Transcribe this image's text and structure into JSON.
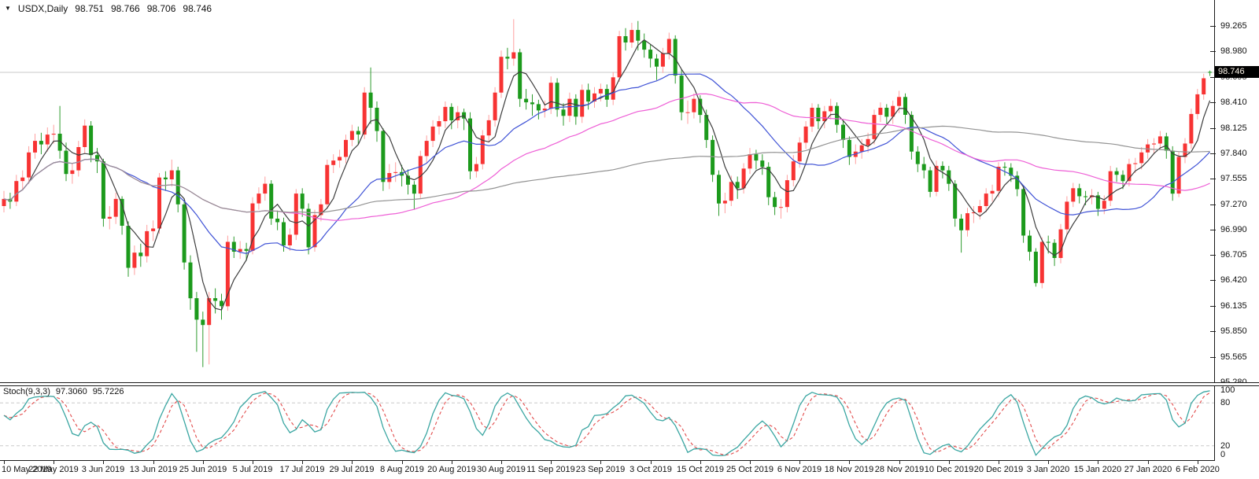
{
  "header": {
    "symbol_period": "USDX,Daily",
    "open": "98.751",
    "high": "98.766",
    "low": "98.706",
    "close": "98.746"
  },
  "price_tag": {
    "value": "98.746"
  },
  "indicator": {
    "name": "Stoch(9,3,3)",
    "k_value": "97.3060",
    "d_value": "95.7226"
  },
  "colors": {
    "background": "#ffffff",
    "axis": "#1a1a1a",
    "text": "#111111",
    "up_body": "#f73333",
    "up_wick": "#ff9f9f",
    "down_body": "#1c9a1c",
    "down_wick": "#2e9b2e",
    "current_price_line": "#c8c8c8",
    "price_tag_bg": "#000000",
    "price_tag_text": "#fdf6ea",
    "stoch_level_line": "#c9c9c9"
  },
  "chart_data": {
    "type": "candlestick",
    "symbol": "USDX",
    "timeframe": "Daily",
    "last_bar": {
      "open": 98.751,
      "high": 98.766,
      "low": 98.706,
      "close": 98.746
    },
    "current_price": 98.746,
    "y_axis": {
      "plot_max": 99.555,
      "plot_min": 95.28,
      "labels": [
        "99.265",
        "98.980",
        "98.695",
        "98.410",
        "98.125",
        "97.840",
        "97.555",
        "97.270",
        "96.990",
        "96.705",
        "96.420",
        "96.135",
        "95.850",
        "95.565",
        "95.280"
      ]
    },
    "x_axis": {
      "labels": [
        {
          "text": "10 May 2019",
          "bar": 0
        },
        {
          "text": "22 May 2019",
          "bar": 8
        },
        {
          "text": "3 Jun 2019",
          "bar": 16
        },
        {
          "text": "13 Jun 2019",
          "bar": 24
        },
        {
          "text": "25 Jun 2019",
          "bar": 32
        },
        {
          "text": "5 Jul 2019",
          "bar": 40
        },
        {
          "text": "17 Jul 2019",
          "bar": 48
        },
        {
          "text": "29 Jul 2019",
          "bar": 56
        },
        {
          "text": "8 Aug 2019",
          "bar": 64
        },
        {
          "text": "20 Aug 2019",
          "bar": 72
        },
        {
          "text": "30 Aug 2019",
          "bar": 80
        },
        {
          "text": "11 Sep 2019",
          "bar": 88
        },
        {
          "text": "23 Sep 2019",
          "bar": 96
        },
        {
          "text": "3 Oct 2019",
          "bar": 104
        },
        {
          "text": "15 Oct 2019",
          "bar": 112
        },
        {
          "text": "25 Oct 2019",
          "bar": 120
        },
        {
          "text": "6 Nov 2019",
          "bar": 128
        },
        {
          "text": "18 Nov 2019",
          "bar": 136
        },
        {
          "text": "28 Nov 2019",
          "bar": 144
        },
        {
          "text": "10 Dec 2019",
          "bar": 152
        },
        {
          "text": "20 Dec 2019",
          "bar": 160
        },
        {
          "text": "3 Jan 2020",
          "bar": 168
        },
        {
          "text": "15 Jan 2020",
          "bar": 176
        },
        {
          "text": "27 Jan 2020",
          "bar": 184
        },
        {
          "text": "6 Feb 2020",
          "bar": 192
        }
      ]
    },
    "candles": [
      [
        97.25,
        97.42,
        97.18,
        97.33
      ],
      [
        97.33,
        97.4,
        97.22,
        97.3
      ],
      [
        97.3,
        97.6,
        97.25,
        97.53
      ],
      [
        97.53,
        97.65,
        97.44,
        97.57
      ],
      [
        97.57,
        97.92,
        97.5,
        97.85
      ],
      [
        97.85,
        98.06,
        97.78,
        97.98
      ],
      [
        97.98,
        98.07,
        97.83,
        97.94
      ],
      [
        97.94,
        98.13,
        97.86,
        98.05
      ],
      [
        98.05,
        98.16,
        97.95,
        98.06
      ],
      [
        98.06,
        98.37,
        97.78,
        97.87
      ],
      [
        97.87,
        97.96,
        97.53,
        97.61
      ],
      [
        97.61,
        97.73,
        97.5,
        97.65
      ],
      [
        97.65,
        97.98,
        97.58,
        97.91
      ],
      [
        97.91,
        98.22,
        97.84,
        98.15
      ],
      [
        98.15,
        98.2,
        97.74,
        97.82
      ],
      [
        97.82,
        97.9,
        97.62,
        97.75
      ],
      [
        97.75,
        97.78,
        97.02,
        97.11
      ],
      [
        97.11,
        97.25,
        96.99,
        97.13
      ],
      [
        97.13,
        97.4,
        97.05,
        97.33
      ],
      [
        97.33,
        97.36,
        96.93,
        97.03
      ],
      [
        97.03,
        97.08,
        96.46,
        96.56
      ],
      [
        96.56,
        96.81,
        96.48,
        96.73
      ],
      [
        96.73,
        96.83,
        96.57,
        96.69
      ],
      [
        96.69,
        97.04,
        96.62,
        96.97
      ],
      [
        96.97,
        97.09,
        96.86,
        97.0
      ],
      [
        97.0,
        97.62,
        96.94,
        97.57
      ],
      [
        97.57,
        97.64,
        97.42,
        97.55
      ],
      [
        97.55,
        97.77,
        97.47,
        97.65
      ],
      [
        97.65,
        97.69,
        97.18,
        97.27
      ],
      [
        97.27,
        97.32,
        96.54,
        96.62
      ],
      [
        96.62,
        96.7,
        96.09,
        96.22
      ],
      [
        96.22,
        96.29,
        95.62,
        95.98
      ],
      [
        95.98,
        96.07,
        95.45,
        95.92
      ],
      [
        95.92,
        96.29,
        95.48,
        96.22
      ],
      [
        96.22,
        96.33,
        96.05,
        96.19
      ],
      [
        96.19,
        96.27,
        95.98,
        96.13
      ],
      [
        96.13,
        96.92,
        96.08,
        96.85
      ],
      [
        96.85,
        96.91,
        96.67,
        96.74
      ],
      [
        96.74,
        96.86,
        96.66,
        96.77
      ],
      [
        96.77,
        96.84,
        96.64,
        96.75
      ],
      [
        96.75,
        97.35,
        96.71,
        97.28
      ],
      [
        97.28,
        97.46,
        97.21,
        97.39
      ],
      [
        97.39,
        97.58,
        97.31,
        97.5
      ],
      [
        97.5,
        97.54,
        97.04,
        97.11
      ],
      [
        97.11,
        97.2,
        96.98,
        97.07
      ],
      [
        97.07,
        97.12,
        96.74,
        96.81
      ],
      [
        96.81,
        97.0,
        96.75,
        96.93
      ],
      [
        96.93,
        97.44,
        96.87,
        97.39
      ],
      [
        97.39,
        97.45,
        97.13,
        97.22
      ],
      [
        97.22,
        97.28,
        96.71,
        96.79
      ],
      [
        96.79,
        97.21,
        96.74,
        97.15
      ],
      [
        97.15,
        97.33,
        97.08,
        97.27
      ],
      [
        97.27,
        97.77,
        97.22,
        97.71
      ],
      [
        97.71,
        97.83,
        97.62,
        97.76
      ],
      [
        97.76,
        97.88,
        97.68,
        97.8
      ],
      [
        97.8,
        98.05,
        97.73,
        97.99
      ],
      [
        97.99,
        98.16,
        97.92,
        98.09
      ],
      [
        98.09,
        98.14,
        97.94,
        98.05
      ],
      [
        98.05,
        98.58,
        98.0,
        98.52
      ],
      [
        98.52,
        98.8,
        98.17,
        98.35
      ],
      [
        98.35,
        98.42,
        97.97,
        98.09
      ],
      [
        98.09,
        98.12,
        97.42,
        97.52
      ],
      [
        97.52,
        97.72,
        97.44,
        97.62
      ],
      [
        97.62,
        97.74,
        97.52,
        97.63
      ],
      [
        97.63,
        97.71,
        97.47,
        97.59
      ],
      [
        97.59,
        97.66,
        97.38,
        97.49
      ],
      [
        97.49,
        97.53,
        97.21,
        97.39
      ],
      [
        97.39,
        97.87,
        97.33,
        97.81
      ],
      [
        97.81,
        98.04,
        97.73,
        97.98
      ],
      [
        97.98,
        98.21,
        97.91,
        98.14
      ],
      [
        98.14,
        98.26,
        98.05,
        98.2
      ],
      [
        98.2,
        98.42,
        98.12,
        98.36
      ],
      [
        98.36,
        98.4,
        98.11,
        98.21
      ],
      [
        98.21,
        98.37,
        98.12,
        98.3
      ],
      [
        98.3,
        98.34,
        98.1,
        98.23
      ],
      [
        98.23,
        98.3,
        97.55,
        97.64
      ],
      [
        97.64,
        97.8,
        97.57,
        97.72
      ],
      [
        97.72,
        98.1,
        97.66,
        98.04
      ],
      [
        98.04,
        98.27,
        97.96,
        98.21
      ],
      [
        98.21,
        98.58,
        98.14,
        98.52
      ],
      [
        98.52,
        98.99,
        98.46,
        98.92
      ],
      [
        98.92,
        99.02,
        98.78,
        98.9
      ],
      [
        98.9,
        99.34,
        98.82,
        98.97
      ],
      [
        98.97,
        99.01,
        98.36,
        98.45
      ],
      [
        98.45,
        98.56,
        98.33,
        98.41
      ],
      [
        98.41,
        98.5,
        98.26,
        98.39
      ],
      [
        98.39,
        98.44,
        98.22,
        98.32
      ],
      [
        98.32,
        98.43,
        98.24,
        98.34
      ],
      [
        98.34,
        98.7,
        98.28,
        98.63
      ],
      [
        98.63,
        98.68,
        98.25,
        98.33
      ],
      [
        98.33,
        98.4,
        98.15,
        98.26
      ],
      [
        98.26,
        98.52,
        98.19,
        98.45
      ],
      [
        98.45,
        98.5,
        98.16,
        98.25
      ],
      [
        98.25,
        98.61,
        98.18,
        98.55
      ],
      [
        98.55,
        98.62,
        98.33,
        98.42
      ],
      [
        98.42,
        98.58,
        98.35,
        98.51
      ],
      [
        98.51,
        98.62,
        98.42,
        98.56
      ],
      [
        98.56,
        98.61,
        98.36,
        98.44
      ],
      [
        98.44,
        98.75,
        98.38,
        98.69
      ],
      [
        98.69,
        99.21,
        98.64,
        99.15
      ],
      [
        99.15,
        99.24,
        98.99,
        99.08
      ],
      [
        99.08,
        99.3,
        99.02,
        99.22
      ],
      [
        99.22,
        99.32,
        98.99,
        99.1
      ],
      [
        99.1,
        99.18,
        98.91,
        99.0
      ],
      [
        99.0,
        99.06,
        98.8,
        98.9
      ],
      [
        98.9,
        98.95,
        98.66,
        98.81
      ],
      [
        98.81,
        99.02,
        98.74,
        98.96
      ],
      [
        98.96,
        99.19,
        98.89,
        99.12
      ],
      [
        99.12,
        99.16,
        98.62,
        98.71
      ],
      [
        98.71,
        98.78,
        98.21,
        98.3
      ],
      [
        98.3,
        98.43,
        98.17,
        98.3
      ],
      [
        98.3,
        98.51,
        98.23,
        98.45
      ],
      [
        98.45,
        98.49,
        98.18,
        98.27
      ],
      [
        98.27,
        98.33,
        97.9,
        97.99
      ],
      [
        97.99,
        98.04,
        97.52,
        97.6
      ],
      [
        97.6,
        97.65,
        97.14,
        97.28
      ],
      [
        97.28,
        97.4,
        97.17,
        97.31
      ],
      [
        97.31,
        97.59,
        97.25,
        97.52
      ],
      [
        97.52,
        97.58,
        97.33,
        97.45
      ],
      [
        97.45,
        97.73,
        97.39,
        97.67
      ],
      [
        97.67,
        97.9,
        97.61,
        97.83
      ],
      [
        97.83,
        97.88,
        97.66,
        97.76
      ],
      [
        97.76,
        97.83,
        97.6,
        97.69
      ],
      [
        97.69,
        97.74,
        97.26,
        97.35
      ],
      [
        97.35,
        97.41,
        97.15,
        97.24
      ],
      [
        97.24,
        97.33,
        97.11,
        97.24
      ],
      [
        97.24,
        97.6,
        97.18,
        97.54
      ],
      [
        97.54,
        97.82,
        97.47,
        97.75
      ],
      [
        97.75,
        98.02,
        97.68,
        97.96
      ],
      [
        97.96,
        98.2,
        97.89,
        98.14
      ],
      [
        98.14,
        98.4,
        98.08,
        98.35
      ],
      [
        98.35,
        98.39,
        98.11,
        98.2
      ],
      [
        98.2,
        98.37,
        98.12,
        98.31
      ],
      [
        98.31,
        98.45,
        98.22,
        98.37
      ],
      [
        98.37,
        98.41,
        98.07,
        98.16
      ],
      [
        98.16,
        98.21,
        97.9,
        97.99
      ],
      [
        97.99,
        98.03,
        97.71,
        97.8
      ],
      [
        97.8,
        97.94,
        97.72,
        97.86
      ],
      [
        97.86,
        98.0,
        97.78,
        97.93
      ],
      [
        97.93,
        98.07,
        97.85,
        98.0
      ],
      [
        98.0,
        98.33,
        97.94,
        98.27
      ],
      [
        98.27,
        98.41,
        98.19,
        98.35
      ],
      [
        98.35,
        98.39,
        98.16,
        98.25
      ],
      [
        98.25,
        98.43,
        98.17,
        98.37
      ],
      [
        98.37,
        98.54,
        98.29,
        98.47
      ],
      [
        98.47,
        98.51,
        98.17,
        98.27
      ],
      [
        98.27,
        98.31,
        97.77,
        97.86
      ],
      [
        97.86,
        97.92,
        97.63,
        97.72
      ],
      [
        97.72,
        97.8,
        97.56,
        97.65
      ],
      [
        97.65,
        97.69,
        97.35,
        97.41
      ],
      [
        97.41,
        97.76,
        97.36,
        97.7
      ],
      [
        97.7,
        97.75,
        97.56,
        97.65
      ],
      [
        97.65,
        97.7,
        97.42,
        97.5
      ],
      [
        97.5,
        97.54,
        97.02,
        97.11
      ],
      [
        97.11,
        97.16,
        96.73,
        96.98
      ],
      [
        96.98,
        97.23,
        96.91,
        97.17
      ],
      [
        97.17,
        97.25,
        97.06,
        97.18
      ],
      [
        97.18,
        97.32,
        97.1,
        97.25
      ],
      [
        97.25,
        97.45,
        97.18,
        97.39
      ],
      [
        97.39,
        97.49,
        97.3,
        97.42
      ],
      [
        97.42,
        97.74,
        97.35,
        97.69
      ],
      [
        97.69,
        97.74,
        97.59,
        97.68
      ],
      [
        97.68,
        97.73,
        97.52,
        97.59
      ],
      [
        97.59,
        97.64,
        97.36,
        97.44
      ],
      [
        97.44,
        97.48,
        96.84,
        96.92
      ],
      [
        96.92,
        96.98,
        96.64,
        96.74
      ],
      [
        96.74,
        96.78,
        96.35,
        96.39
      ],
      [
        96.39,
        96.9,
        96.33,
        96.85
      ],
      [
        96.85,
        96.92,
        96.72,
        96.84
      ],
      [
        96.84,
        96.88,
        96.58,
        96.67
      ],
      [
        96.67,
        97.05,
        96.61,
        96.99
      ],
      [
        96.99,
        97.36,
        96.93,
        97.3
      ],
      [
        97.3,
        97.51,
        97.24,
        97.45
      ],
      [
        97.45,
        97.5,
        97.28,
        97.36
      ],
      [
        97.36,
        97.42,
        97.26,
        97.35
      ],
      [
        97.35,
        97.44,
        97.27,
        97.37
      ],
      [
        97.37,
        97.41,
        97.14,
        97.22
      ],
      [
        97.22,
        97.37,
        97.16,
        97.31
      ],
      [
        97.31,
        97.7,
        97.25,
        97.64
      ],
      [
        97.64,
        97.68,
        97.52,
        97.6
      ],
      [
        97.6,
        97.65,
        97.44,
        97.53
      ],
      [
        97.53,
        97.78,
        97.47,
        97.72
      ],
      [
        97.72,
        97.79,
        97.62,
        97.73
      ],
      [
        97.73,
        97.91,
        97.66,
        97.85
      ],
      [
        97.85,
        98.0,
        97.78,
        97.94
      ],
      [
        97.94,
        98.01,
        97.84,
        97.95
      ],
      [
        97.95,
        98.09,
        97.88,
        98.03
      ],
      [
        98.03,
        98.07,
        97.78,
        97.87
      ],
      [
        97.87,
        97.92,
        97.31,
        97.39
      ],
      [
        97.39,
        97.86,
        97.35,
        97.8
      ],
      [
        97.8,
        98.01,
        97.73,
        97.95
      ],
      [
        97.95,
        98.34,
        97.89,
        98.28
      ],
      [
        98.28,
        98.56,
        98.22,
        98.5
      ],
      [
        98.5,
        98.73,
        98.44,
        98.68
      ],
      [
        98.751,
        98.766,
        98.706,
        98.746
      ]
    ],
    "overlays": [
      {
        "name": "ma-fast",
        "period": 5,
        "color": "#3d3d3d"
      },
      {
        "name": "ma-medium",
        "period": 20,
        "color": "#4053d6"
      },
      {
        "name": "ma-slow",
        "period": 45,
        "color": "#ee5fd6"
      },
      {
        "name": "ma-long",
        "period": 100,
        "color": "#939393"
      }
    ],
    "stochastic": {
      "label": "Stoch(9,3,3)",
      "k_period": 9,
      "d_period": 3,
      "slowing": 3,
      "current_k": 97.306,
      "current_d": 95.7226,
      "levels": [
        80,
        20
      ],
      "scale_labels": [
        "100",
        "80",
        "20",
        "0"
      ],
      "k_color": "#3aa6a2",
      "d_color": "#e24b4b"
    }
  }
}
